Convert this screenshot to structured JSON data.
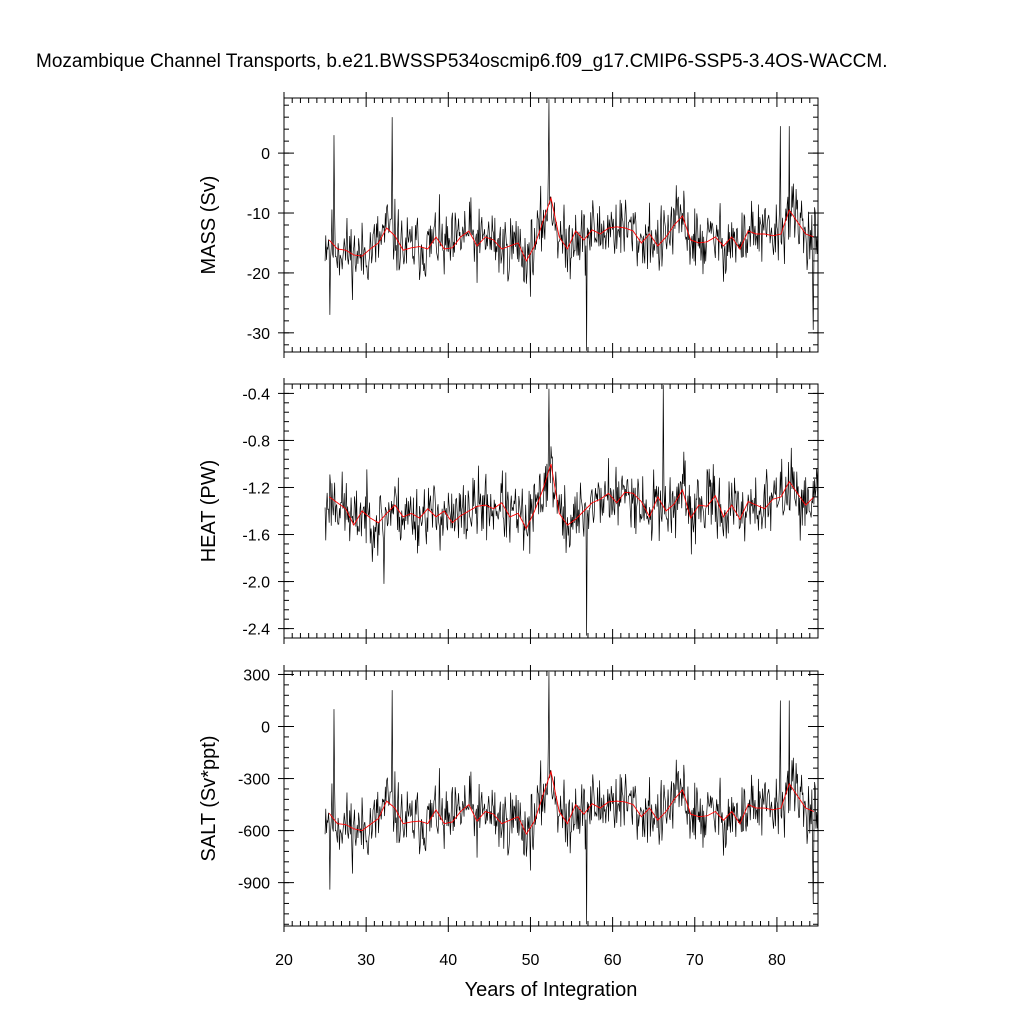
{
  "title": "Mozambique Channel Transports, b.e21.BWSSP534oscmip6.f09_g17.CMIP6-SSP5-3.4OS-WACCM.",
  "colors": {
    "monthly": "#000000",
    "annual": "#ff0000",
    "frame": "#000000"
  },
  "chart_data": [
    {
      "type": "line",
      "name": "mass",
      "ylabel": "MASS (Sv)",
      "xlim": [
        20,
        85
      ],
      "ylim": [
        -33.2,
        9.2
      ],
      "yticks": [
        0,
        -10,
        -20,
        -30
      ],
      "yticklabels": [
        "0",
        "-10",
        "-20",
        "-30"
      ],
      "monthly_seed": 11,
      "anchors": {
        "mean": -14.6,
        "amp": 5.4,
        "lo": -33.0,
        "hi": 9.0,
        "spikes": [
          [
            26.05,
            3.0
          ],
          [
            33.2,
            6.0
          ],
          [
            52.25,
            9.0
          ],
          [
            56.8,
            -33.0
          ],
          [
            80.4,
            4.5
          ],
          [
            81.5,
            4.5
          ],
          [
            84.4,
            -29.5
          ],
          [
            25.6,
            -27.0
          ]
        ]
      },
      "annual_x": [
        25.5,
        26.5,
        27.5,
        28.5,
        29.5,
        30.5,
        31.5,
        32.5,
        33.5,
        34.5,
        35.5,
        36.5,
        37.5,
        38.5,
        39.5,
        40.5,
        41.5,
        42.5,
        43.5,
        44.5,
        45.5,
        46.5,
        47.5,
        48.5,
        49.5,
        50.5,
        51.5,
        52.5,
        53.5,
        54.5,
        55.5,
        56.5,
        57.5,
        58.5,
        59.5,
        60.5,
        61.5,
        62.5,
        63.5,
        64.5,
        65.5,
        66.5,
        67.5,
        68.5,
        69.5,
        70.5,
        71.5,
        72.5,
        73.5,
        74.5,
        75.5,
        76.5,
        77.5,
        78.5,
        79.5,
        80.5,
        81.5,
        82.5,
        83.5,
        84.5
      ],
      "annual_y": [
        -14.5,
        -16.0,
        -16.2,
        -17.0,
        -17.2,
        -16.0,
        -15.0,
        -12.5,
        -13.8,
        -16.2,
        -15.8,
        -15.6,
        -16.0,
        -14.0,
        -16.0,
        -15.8,
        -14.0,
        -13.0,
        -15.5,
        -14.0,
        -14.5,
        -16.0,
        -15.5,
        -15.0,
        -18.0,
        -15.5,
        -11.5,
        -7.5,
        -14.0,
        -16.0,
        -13.0,
        -14.5,
        -12.8,
        -13.5,
        -12.5,
        -12.3,
        -12.5,
        -13.0,
        -15.0,
        -13.5,
        -15.5,
        -14.0,
        -12.0,
        -10.5,
        -14.5,
        -15.0,
        -14.8,
        -14.0,
        -15.5,
        -14.0,
        -16.0,
        -13.0,
        -13.5,
        -13.5,
        -13.8,
        -13.5,
        -9.5,
        -11.5,
        -13.5,
        -14.0
      ]
    },
    {
      "type": "line",
      "name": "heat",
      "ylabel": "HEAT (PW)",
      "xlim": [
        20,
        85
      ],
      "ylim": [
        -2.48,
        -0.32
      ],
      "yticks": [
        -0.4,
        -0.8,
        -1.2,
        -1.6,
        -2.0,
        -2.4
      ],
      "yticklabels": [
        "-0.4",
        "-0.8",
        "-1.2",
        "-1.6",
        "-2.0",
        "-2.4"
      ],
      "monthly_seed": 23,
      "anchors": {
        "mean": -1.4,
        "amp": 0.27,
        "lo": -2.47,
        "hi": -0.33,
        "spikes": [
          [
            52.25,
            -0.36
          ],
          [
            56.8,
            -2.46
          ],
          [
            66.2,
            -0.33
          ],
          [
            32.2,
            -2.02
          ],
          [
            25.1,
            -1.65
          ]
        ]
      },
      "annual_x": [
        25.5,
        26.5,
        27.5,
        28.5,
        29.5,
        30.5,
        31.5,
        32.5,
        33.5,
        34.5,
        35.5,
        36.5,
        37.5,
        38.5,
        39.5,
        40.5,
        41.5,
        42.5,
        43.5,
        44.5,
        45.5,
        46.5,
        47.5,
        48.5,
        49.5,
        50.5,
        51.5,
        52.5,
        53.5,
        54.5,
        55.5,
        56.5,
        57.5,
        58.5,
        59.5,
        60.5,
        61.5,
        62.5,
        63.5,
        64.5,
        65.5,
        66.5,
        67.5,
        68.5,
        69.5,
        70.5,
        71.5,
        72.5,
        73.5,
        74.5,
        75.5,
        76.5,
        77.5,
        78.5,
        79.5,
        80.5,
        81.5,
        82.5,
        83.5,
        84.5
      ],
      "annual_y": [
        -1.28,
        -1.33,
        -1.38,
        -1.52,
        -1.4,
        -1.46,
        -1.5,
        -1.42,
        -1.35,
        -1.45,
        -1.42,
        -1.46,
        -1.38,
        -1.45,
        -1.4,
        -1.5,
        -1.44,
        -1.4,
        -1.36,
        -1.35,
        -1.38,
        -1.33,
        -1.45,
        -1.42,
        -1.55,
        -1.4,
        -1.22,
        -1.0,
        -1.42,
        -1.52,
        -1.47,
        -1.4,
        -1.33,
        -1.3,
        -1.25,
        -1.33,
        -1.24,
        -1.25,
        -1.32,
        -1.45,
        -1.28,
        -1.4,
        -1.34,
        -1.22,
        -1.46,
        -1.35,
        -1.36,
        -1.27,
        -1.45,
        -1.35,
        -1.47,
        -1.32,
        -1.35,
        -1.38,
        -1.3,
        -1.28,
        -1.15,
        -1.25,
        -1.35,
        -1.28
      ]
    },
    {
      "type": "line",
      "name": "salt",
      "ylabel": "SALT (Sv*ppt)",
      "xlim": [
        20,
        85
      ],
      "ylim": [
        -1150,
        320
      ],
      "yticks": [
        300,
        0,
        -300,
        -600,
        -900
      ],
      "yticklabels": [
        "300",
        "0",
        "-300",
        "-600",
        "-900"
      ],
      "monthly_seed": 11,
      "anchors": {
        "mean": -505,
        "amp": 185,
        "lo": -1140,
        "hi": 315,
        "spikes": [
          [
            26.05,
            100
          ],
          [
            33.2,
            210
          ],
          [
            52.25,
            315
          ],
          [
            56.8,
            -1140
          ],
          [
            80.4,
            150
          ],
          [
            81.5,
            150
          ],
          [
            84.4,
            -1020
          ],
          [
            25.6,
            -940
          ]
        ]
      },
      "annual_x": [
        25.5,
        26.5,
        27.5,
        28.5,
        29.5,
        30.5,
        31.5,
        32.5,
        33.5,
        34.5,
        35.5,
        36.5,
        37.5,
        38.5,
        39.5,
        40.5,
        41.5,
        42.5,
        43.5,
        44.5,
        45.5,
        46.5,
        47.5,
        48.5,
        49.5,
        50.5,
        51.5,
        52.5,
        53.5,
        54.5,
        55.5,
        56.5,
        57.5,
        58.5,
        59.5,
        60.5,
        61.5,
        62.5,
        63.5,
        64.5,
        65.5,
        66.5,
        67.5,
        68.5,
        69.5,
        70.5,
        71.5,
        72.5,
        73.5,
        74.5,
        75.5,
        76.5,
        77.5,
        78.5,
        79.5,
        80.5,
        81.5,
        82.5,
        83.5,
        84.5
      ],
      "annual_y": [
        -500,
        -560,
        -565,
        -590,
        -600,
        -565,
        -530,
        -430,
        -470,
        -560,
        -550,
        -545,
        -560,
        -480,
        -560,
        -550,
        -490,
        -450,
        -545,
        -490,
        -505,
        -560,
        -540,
        -520,
        -620,
        -545,
        -400,
        -260,
        -490,
        -560,
        -450,
        -505,
        -445,
        -470,
        -435,
        -430,
        -435,
        -450,
        -520,
        -470,
        -540,
        -490,
        -420,
        -365,
        -505,
        -520,
        -515,
        -490,
        -540,
        -490,
        -560,
        -450,
        -470,
        -470,
        -480,
        -470,
        -330,
        -400,
        -470,
        -490
      ]
    }
  ],
  "xaxis": {
    "label": "Years of Integration",
    "ticks": [
      20,
      30,
      40,
      50,
      60,
      70,
      80
    ],
    "ticklabels": [
      "20",
      "30",
      "40",
      "50",
      "60",
      "70",
      "80"
    ],
    "data_start": 25.0,
    "data_end": 85.0
  }
}
